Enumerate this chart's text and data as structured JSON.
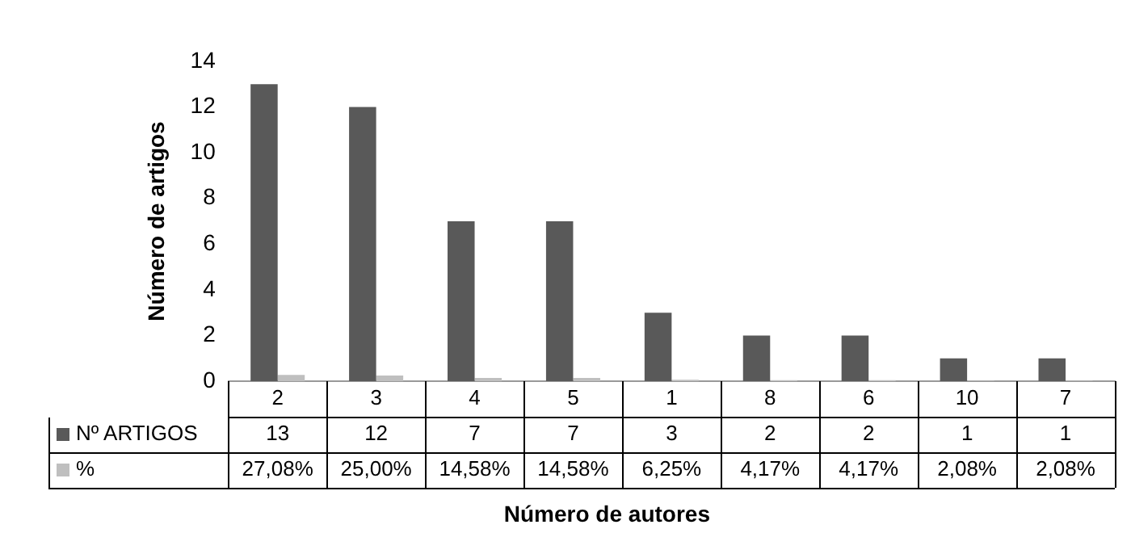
{
  "chart_data": {
    "type": "bar",
    "xlabel": "Número de autores",
    "ylabel": "Número de artigos",
    "categories": [
      "2",
      "3",
      "4",
      "5",
      "1",
      "8",
      "6",
      "10",
      "7"
    ],
    "series": [
      {
        "name": "Nº ARTIGOS",
        "color": "#595959",
        "values": [
          13,
          12,
          7,
          7,
          3,
          2,
          2,
          1,
          1
        ],
        "value_labels": [
          "13",
          "12",
          "7",
          "7",
          "3",
          "2",
          "2",
          "1",
          "1"
        ]
      },
      {
        "name": "%",
        "color": "#bfbfbf",
        "values": [
          0.2708,
          0.25,
          0.1458,
          0.1458,
          0.0625,
          0.0417,
          0.0417,
          0.0208,
          0.0208
        ],
        "value_labels": [
          "27,08%",
          "25,00%",
          "14,58%",
          "14,58%",
          "6,25%",
          "4,17%",
          "4,17%",
          "2,08%",
          "2,08%"
        ]
      }
    ],
    "legend": "bottom left",
    "ylim": [
      0,
      14
    ],
    "yticks": [
      0,
      2,
      4,
      6,
      8,
      10,
      12,
      14
    ]
  }
}
